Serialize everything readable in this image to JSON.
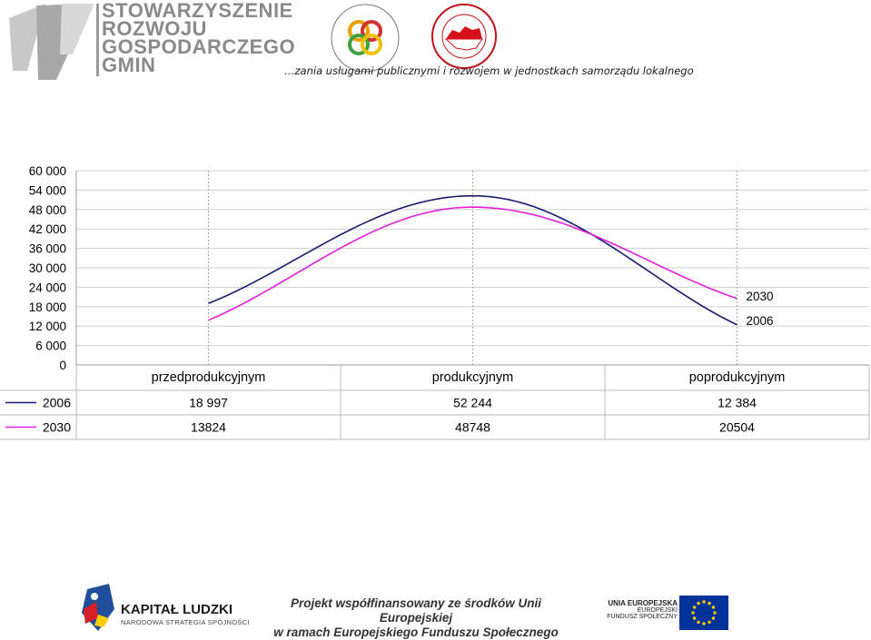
{
  "header": {
    "org_name_lines": [
      "STOWARZYSZENIE",
      "ROZWOJU",
      "GOSPODARCZEGO",
      "GMIN"
    ],
    "logo1_text": "ZWIĄZEK MIAST POLSKICH",
    "logo2_text": "SAMORZĄD TERYTORIALNY · GWARANCJA DOBRYCH USŁUG",
    "tagline": "…zania usługami publicznymi i rozwojem w jednostkach samorządu lokalnego"
  },
  "chart_data": {
    "type": "line",
    "categories": [
      "przedprodukcyjnym",
      "produkcyjnym",
      "poprodukcyjnym"
    ],
    "series": [
      {
        "name": "2006",
        "values": [
          18997,
          52244,
          12384
        ],
        "labels": [
          "18 997",
          "52 244",
          "12 384"
        ],
        "color": "#1a1a6e"
      },
      {
        "name": "2030",
        "values": [
          13824,
          48748,
          20504
        ],
        "labels": [
          "13824",
          "48748",
          "20504"
        ],
        "color": "#e020d8"
      }
    ],
    "y_ticks": [
      "60 000",
      "54 000",
      "48 000",
      "42 000",
      "36 000",
      "30 000",
      "24 000",
      "18 000",
      "12 000",
      "6 000",
      "0"
    ],
    "ylim": [
      0,
      60000
    ],
    "line_end_labels": [
      "2030",
      "2006"
    ],
    "data_table": true
  },
  "footer": {
    "kapital_title": "KAPITAŁ LUDZKI",
    "kapital_sub": "NARODOWA STRATEGIA SPÓJNOŚCI",
    "project_line1": "Projekt współfinansowany ze środków Unii Europejskiej",
    "project_line2": "w ramach Europejskiego Funduszu Społecznego",
    "eu_line1": "UNIA EUROPEJSKA",
    "eu_line2": "EUROPEJSKI",
    "eu_line3": "FUNDUSZ SPOŁECZNY",
    "eu_blue": "#003399",
    "eu_yellow": "#ffcc00"
  }
}
